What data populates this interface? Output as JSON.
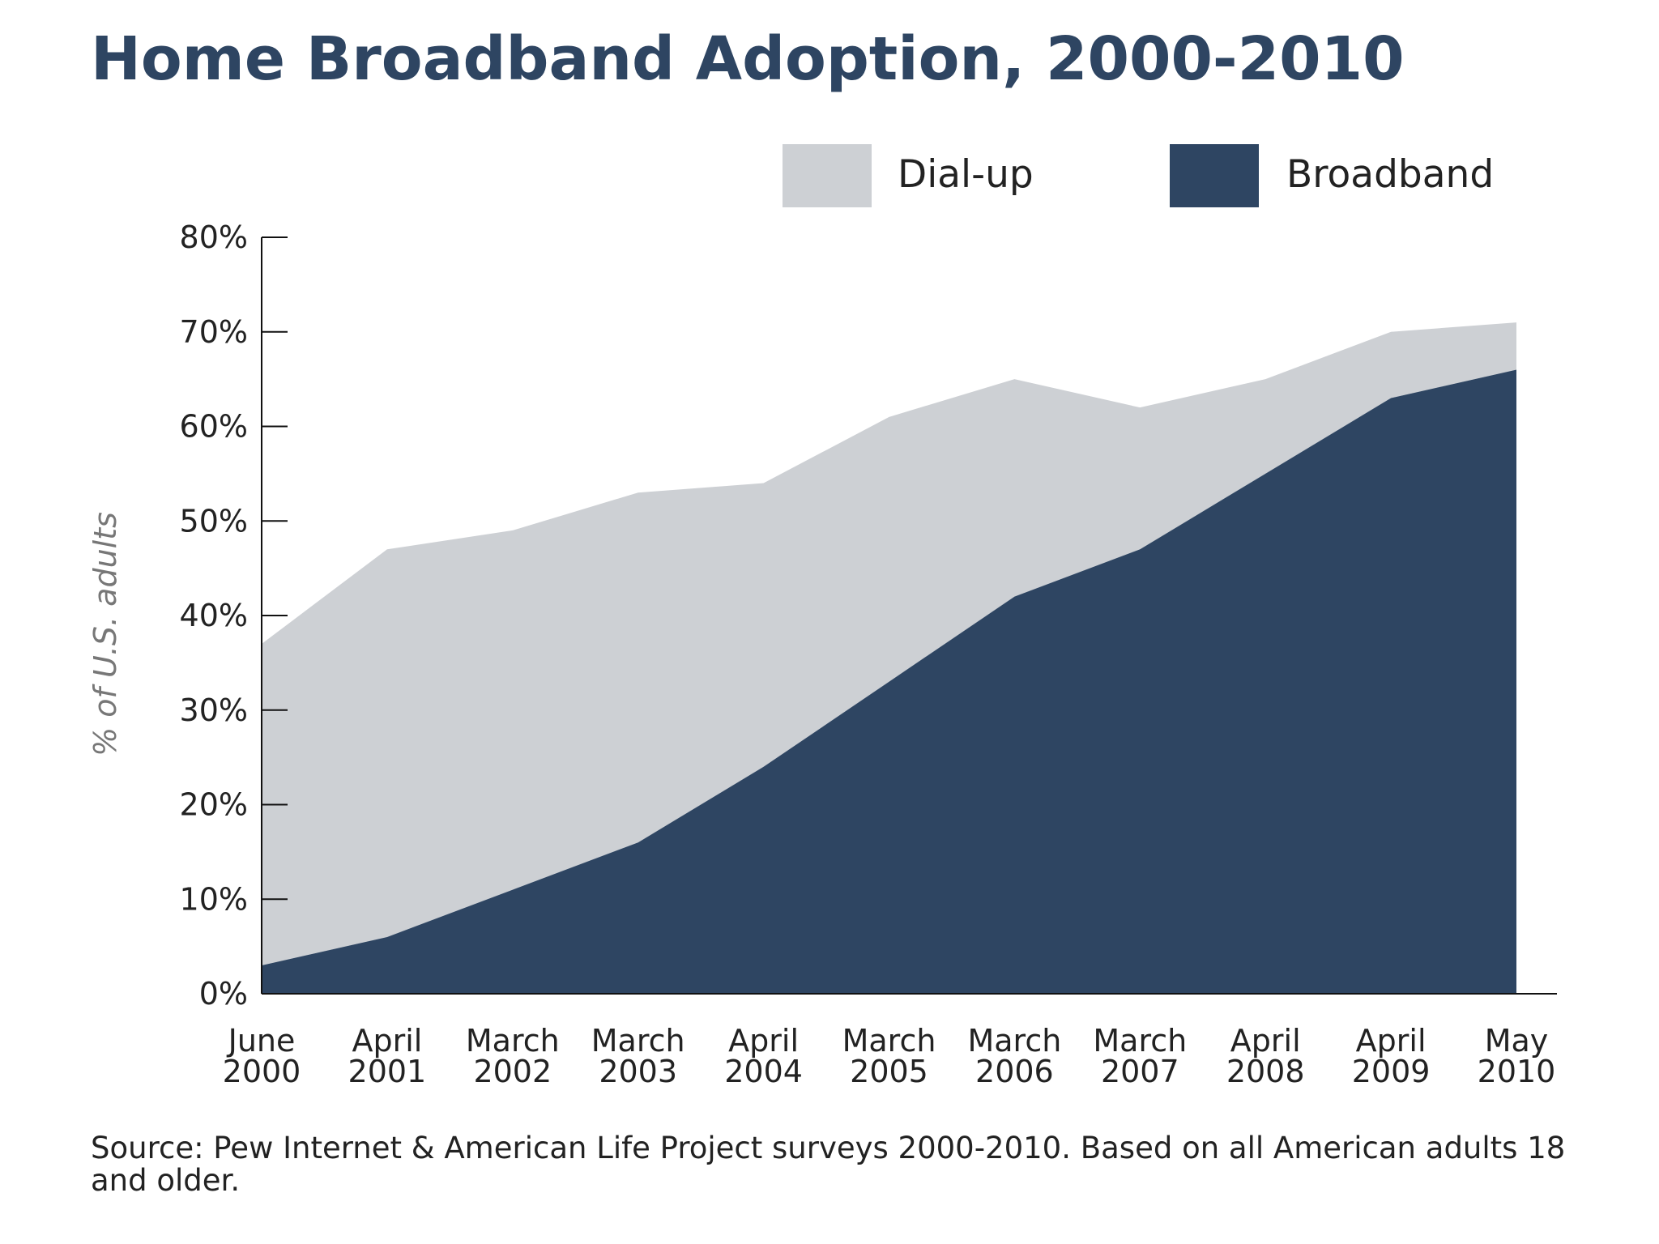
{
  "colors": {
    "dialup": "#cdd0d4",
    "broadband": "#2e4562",
    "axis": "#111111",
    "title": "#2e4562"
  },
  "chart_data": {
    "type": "area",
    "title": "Home Broadband Adoption, 2000-2010",
    "xlabel": "",
    "ylabel": "% of U.S. adults",
    "ylim": [
      0,
      80
    ],
    "yticks": [
      0,
      10,
      20,
      30,
      40,
      50,
      60,
      70,
      80
    ],
    "ytick_labels": [
      "0%",
      "10%",
      "20%",
      "30%",
      "40%",
      "50%",
      "60%",
      "70%",
      "80%"
    ],
    "categories": [
      [
        "June",
        "2000"
      ],
      [
        "April",
        "2001"
      ],
      [
        "March",
        "2002"
      ],
      [
        "March",
        "2003"
      ],
      [
        "April",
        "2004"
      ],
      [
        "March",
        "2005"
      ],
      [
        "March",
        "2006"
      ],
      [
        "March",
        "2007"
      ],
      [
        "April",
        "2008"
      ],
      [
        "April",
        "2009"
      ],
      [
        "May",
        "2010"
      ]
    ],
    "stacked": true,
    "series": [
      {
        "name": "Broadband",
        "color_key": "broadband",
        "values": [
          3,
          6,
          11,
          16,
          24,
          33,
          42,
          47,
          55,
          63,
          66
        ]
      },
      {
        "name": "Dial-up",
        "color_key": "dialup",
        "values": [
          34,
          41,
          38,
          37,
          30,
          28,
          23,
          15,
          10,
          7,
          5
        ]
      }
    ],
    "totals": [
      37,
      47,
      49,
      53,
      54,
      61,
      65,
      62,
      65,
      70,
      71
    ],
    "legend": {
      "placement": "top-right",
      "entries": [
        "Dial-up",
        "Broadband"
      ]
    },
    "grid": false,
    "source": "Source: Pew Internet & American Life Project surveys 2000-2010. Based on all American adults 18 and older."
  }
}
